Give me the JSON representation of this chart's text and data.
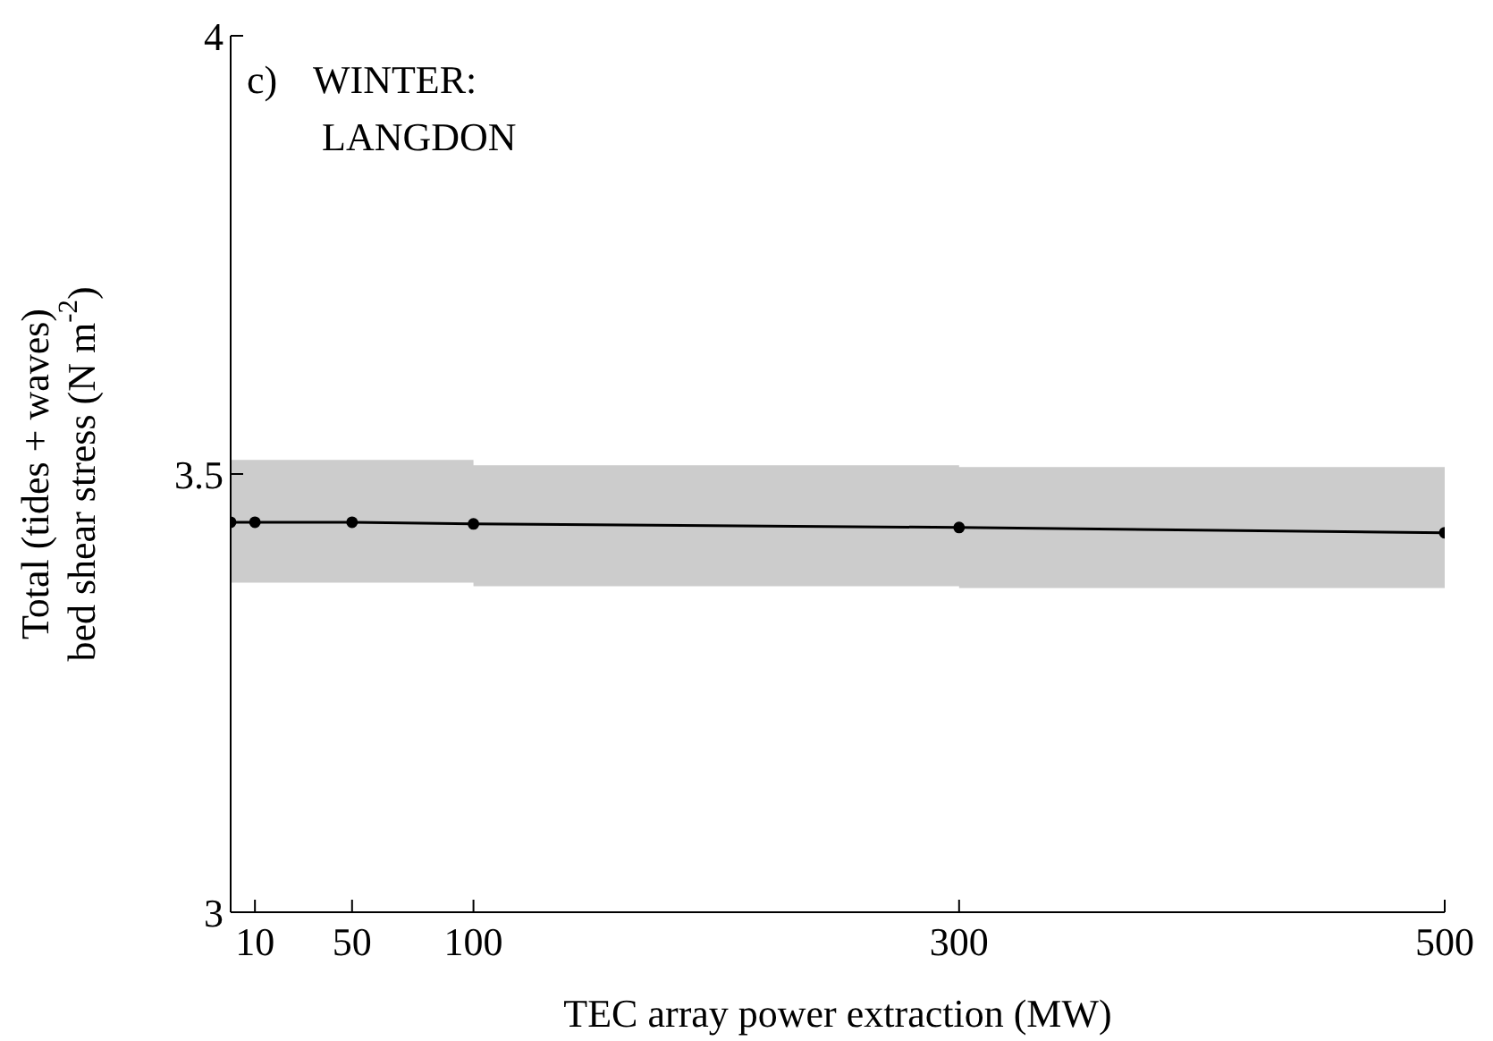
{
  "chart_data": {
    "type": "line",
    "xlabel": "TEC array power extraction (MW)",
    "ylabel": "Total (tides + waves)\nbed shear stress (N m$^{-2}$)",
    "annotations": [
      "c)",
      "WINTER:",
      "LANGDON"
    ],
    "x": [
      0,
      10,
      50,
      100,
      300,
      500
    ],
    "series": [
      {
        "color": "#000000",
        "values": [
          3.445,
          3.445,
          3.445,
          3.443,
          3.439,
          3.433
        ],
        "lower": [
          3.376,
          3.376,
          3.376,
          3.372,
          3.37,
          3.365
        ],
        "upper": [
          3.516,
          3.516,
          3.516,
          3.51,
          3.508,
          3.5
        ]
      }
    ],
    "xlim": [
      0,
      500
    ],
    "xticks": [
      10,
      50,
      100,
      300,
      500
    ],
    "ylim": [
      3,
      4
    ],
    "yticks": [
      3,
      3.5,
      4
    ],
    "marker": "circle",
    "line_style": "solid",
    "grid": false,
    "legend": false
  }
}
